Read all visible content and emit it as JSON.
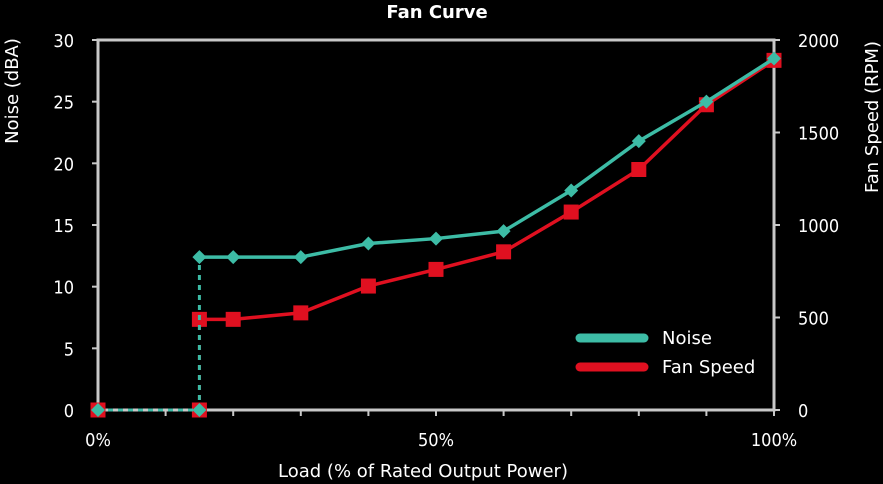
{
  "chart_data": {
    "type": "line",
    "title": "Fan Curve",
    "xlabel": "Load (% of Rated Output Power)",
    "ylabel_left": "Noise (dBA)",
    "ylabel_right": "Fan Speed (RPM)",
    "xlim": [
      0,
      100
    ],
    "ylim_left": [
      0,
      30
    ],
    "ylim_right": [
      0,
      2000
    ],
    "x_ticks": [
      0,
      50,
      100
    ],
    "x_tick_labels": [
      "0%",
      "50%",
      "100%"
    ],
    "y_left_ticks": [
      0,
      5,
      10,
      15,
      20,
      25,
      30
    ],
    "y_left_tick_labels": [
      "0",
      "5",
      "10",
      "15",
      "20",
      "25",
      "30"
    ],
    "y_right_ticks": [
      0,
      500,
      1000,
      1500,
      2000
    ],
    "y_right_tick_labels": [
      "0",
      "500",
      "1000",
      "1500",
      "2000"
    ],
    "x_minor_ticks": [
      10,
      20,
      30,
      40,
      60,
      70,
      80,
      90
    ],
    "grid": false,
    "legend_position": "bottom-right",
    "series": [
      {
        "name": "Noise",
        "axis": "left",
        "color": "#3dbca6",
        "marker": "diamond",
        "x": [
          0,
          15,
          15,
          20,
          30,
          40,
          50,
          60,
          70,
          80,
          90,
          100
        ],
        "y": [
          0,
          0,
          12.4,
          12.4,
          12.4,
          13.5,
          13.9,
          14.5,
          17.8,
          21.8,
          25.0,
          28.5
        ]
      },
      {
        "name": "Fan Speed",
        "axis": "right",
        "color": "#e01020",
        "marker": "square",
        "x": [
          0,
          15,
          15,
          20,
          30,
          40,
          50,
          60,
          70,
          80,
          90,
          100
        ],
        "y": [
          0,
          0,
          490,
          490,
          525,
          670,
          760,
          855,
          1070,
          1300,
          1650,
          1890
        ]
      }
    ],
    "dashed_segments_before_x": 15
  }
}
